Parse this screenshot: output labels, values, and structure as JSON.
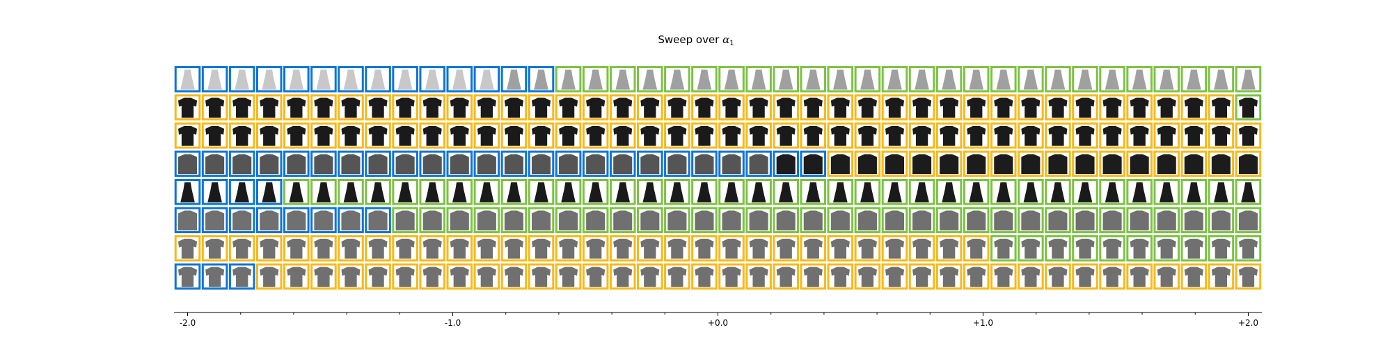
{
  "chart_data": {
    "type": "heatmap",
    "title_prefix": "Sweep over ",
    "title_symbol": "α",
    "title_subscript": "1",
    "x_range": [
      -2.0,
      2.0
    ],
    "x_ticks": [
      -2.0,
      -1.0,
      0.0,
      1.0,
      2.0
    ],
    "x_tick_labels": [
      "-2.0",
      "-1.0",
      "+0.0",
      "+1.0",
      "+2.0"
    ],
    "columns": 40,
    "grid": false,
    "legend": "none",
    "classes": {
      "blue": "#0a74da",
      "green": "#7cc242",
      "yellow": "#f6b91a"
    },
    "rows": [
      {
        "garment": "dress",
        "shade": "light",
        "segments": [
          [
            "blue",
            14
          ],
          [
            "green",
            26
          ]
        ]
      },
      {
        "garment": "tshirt",
        "shade": "dark",
        "segments": [
          [
            "yellow",
            39
          ],
          [
            "green",
            1
          ]
        ]
      },
      {
        "garment": "tshirt",
        "shade": "dark",
        "segments": [
          [
            "yellow",
            40
          ]
        ]
      },
      {
        "garment": "coat",
        "shade": "mixed",
        "segments": [
          [
            "blue",
            24
          ],
          [
            "yellow",
            16
          ]
        ]
      },
      {
        "garment": "dress",
        "shade": "dark",
        "segments": [
          [
            "blue",
            4
          ],
          [
            "green",
            36
          ]
        ]
      },
      {
        "garment": "coat",
        "shade": "mid",
        "segments": [
          [
            "blue",
            8
          ],
          [
            "green",
            32
          ]
        ]
      },
      {
        "garment": "tshirt",
        "shade": "mid",
        "segments": [
          [
            "yellow",
            30
          ],
          [
            "green",
            10
          ]
        ]
      },
      {
        "garment": "tshirt",
        "shade": "mid",
        "segments": [
          [
            "blue",
            3
          ],
          [
            "yellow",
            37
          ]
        ]
      }
    ]
  }
}
